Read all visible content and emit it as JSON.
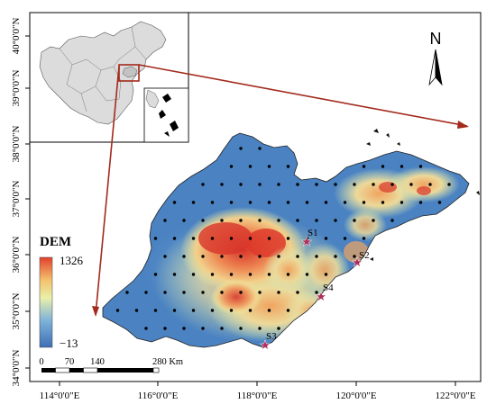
{
  "axes": {
    "lon_ticks": [
      "114°0'0\"E",
      "116°0'0\"E",
      "118°0'0\"E",
      "120°0'0\"E",
      "122°0'0\"E"
    ],
    "lat_ticks": [
      "40°0'0\"N",
      "39°0'0\"N",
      "38°0'0\"N",
      "37°0'0\"N",
      "36°0'0\"N",
      "35°0'0\"N",
      "34°0'0\"N"
    ]
  },
  "north_arrow": {
    "label": "N"
  },
  "legend": {
    "title": "DEM",
    "max_label": "1326",
    "min_label": "−13",
    "colors": [
      "#3d6fb5",
      "#7fb3d9",
      "#e9f0a9",
      "#f3c06c",
      "#e2402d"
    ]
  },
  "scale_bar": {
    "labels": [
      "0",
      "70",
      "140",
      "280 Km"
    ]
  },
  "sites": [
    {
      "id": "S1",
      "label": "S1"
    },
    {
      "id": "S2",
      "label": "S2"
    },
    {
      "id": "S3",
      "label": "S3"
    },
    {
      "id": "S4",
      "label": "S4"
    }
  ],
  "colors": {
    "frame": "#000000",
    "arrow": "#a32a1c",
    "site_marker": "#b0305a",
    "inset_fill": "#dcdcdc"
  }
}
